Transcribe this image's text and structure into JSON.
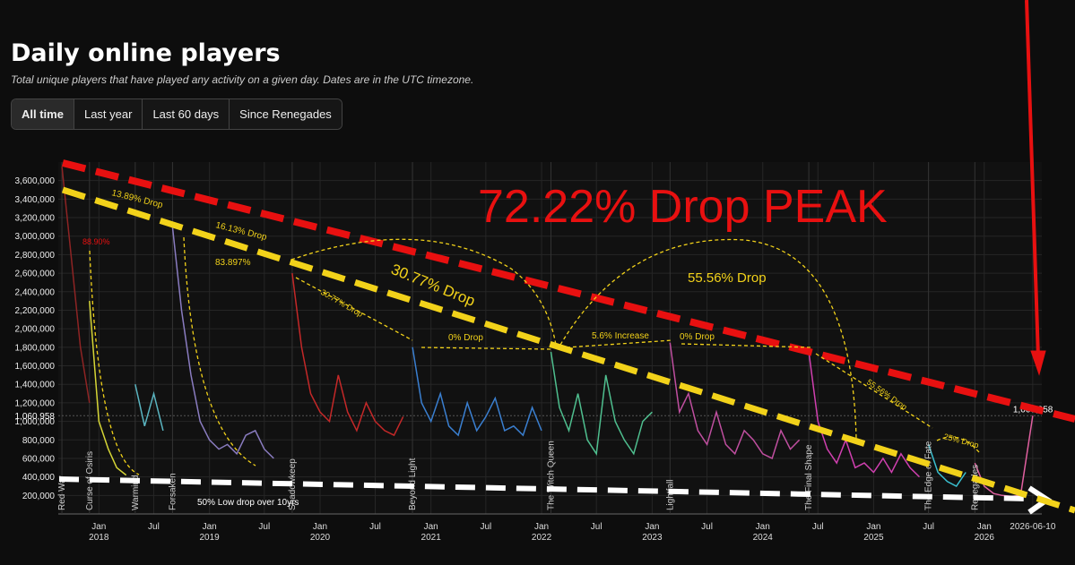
{
  "chart_data": {
    "type": "line",
    "title": "Daily online players",
    "subtitle": "Total unique players that have played any activity on a given day. Dates are in the UTC timezone.",
    "buttons": [
      "All time",
      "Last year",
      "Last 60 days",
      "Since Renegades"
    ],
    "xlim": [
      "2017-08-20",
      "2026-07-10"
    ],
    "ylim": [
      0,
      3800000
    ],
    "grid": true,
    "yticks": [
      {
        "value": 200000,
        "label": "200,000"
      },
      {
        "value": 400000,
        "label": "400,000"
      },
      {
        "value": 600000,
        "label": "600,000"
      },
      {
        "value": 800000,
        "label": "800,000"
      },
      {
        "value": 1000000,
        "label": "1,000,000"
      },
      {
        "value": 1200000,
        "label": "1,200,000"
      },
      {
        "value": 1400000,
        "label": "1,400,000"
      },
      {
        "value": 1600000,
        "label": "1,600,000"
      },
      {
        "value": 1800000,
        "label": "1,800,000"
      },
      {
        "value": 2000000,
        "label": "2,000,000"
      },
      {
        "value": 2200000,
        "label": "2,200,000"
      },
      {
        "value": 2400000,
        "label": "2,400,000"
      },
      {
        "value": 2600000,
        "label": "2,600,000"
      },
      {
        "value": 2800000,
        "label": "2,800,000"
      },
      {
        "value": 3000000,
        "label": "3,000,000"
      },
      {
        "value": 3200000,
        "label": "3,200,000"
      },
      {
        "value": 3400000,
        "label": "3,400,000"
      },
      {
        "value": 3600000,
        "label": "3,600,000"
      }
    ],
    "current_marker": {
      "value": 1060958,
      "label": "1,060,958",
      "date": "2026-06-10"
    },
    "xticks": [
      {
        "value": "2018-01",
        "label": "Jan"
      },
      {
        "value": "2018-07",
        "label": "Jul"
      },
      {
        "value": "2019-01",
        "label": "Jan"
      },
      {
        "value": "2019-07",
        "label": "Jul"
      },
      {
        "value": "2020-01",
        "label": "Jan"
      },
      {
        "value": "2020-07",
        "label": "Jul"
      },
      {
        "value": "2021-01",
        "label": "Jan"
      },
      {
        "value": "2021-07",
        "label": "Jul"
      },
      {
        "value": "2022-01",
        "label": "Jan"
      },
      {
        "value": "2022-07",
        "label": "Jul"
      },
      {
        "value": "2023-01",
        "label": "Jan"
      },
      {
        "value": "2023-07",
        "label": "Jul"
      },
      {
        "value": "2024-01",
        "label": "Jan"
      },
      {
        "value": "2024-07",
        "label": "Jul"
      },
      {
        "value": "2025-01",
        "label": "Jan"
      },
      {
        "value": "2025-07",
        "label": "Jul"
      },
      {
        "value": "2026-01",
        "label": "Jan"
      },
      {
        "value": "2026-06-10",
        "label": "2026-06-10"
      }
    ],
    "xtick_years": [
      {
        "value": "2018-01",
        "label": "2018"
      },
      {
        "value": "2019-01",
        "label": "2019"
      },
      {
        "value": "2020-01",
        "label": "2020"
      },
      {
        "value": "2021-01",
        "label": "2021"
      },
      {
        "value": "2022-01",
        "label": "2022"
      },
      {
        "value": "2023-01",
        "label": "2023"
      },
      {
        "value": "2024-01",
        "label": "2024"
      },
      {
        "value": "2025-01",
        "label": "2025"
      },
      {
        "value": "2026-01",
        "label": "2026"
      }
    ],
    "series": [
      {
        "name": "Red War",
        "color": "#8e2424",
        "x": [
          "2017-09",
          "2017-10",
          "2017-11",
          "2017-12"
        ],
        "values": [
          3750000,
          2800000,
          1800000,
          1200000
        ]
      },
      {
        "name": "Curse of Osiris",
        "color": "#d6d636",
        "x": [
          "2017-12",
          "2018-01",
          "2018-02",
          "2018-03",
          "2018-04"
        ],
        "values": [
          2300000,
          1000000,
          700000,
          500000,
          420000
        ]
      },
      {
        "name": "Warmind",
        "color": "#5ab4c0",
        "x": [
          "2018-05",
          "2018-06",
          "2018-07",
          "2018-08"
        ],
        "values": [
          1400000,
          950000,
          1300000,
          900000
        ]
      },
      {
        "name": "Forsaken",
        "color": "#8a7cc0",
        "x": [
          "2018-09",
          "2018-10",
          "2018-11",
          "2018-12",
          "2019-01",
          "2019-02",
          "2019-03",
          "2019-04",
          "2019-05",
          "2019-06",
          "2019-07",
          "2019-08"
        ],
        "values": [
          3100000,
          2200000,
          1500000,
          1000000,
          800000,
          700000,
          750000,
          650000,
          850000,
          900000,
          700000,
          600000
        ]
      },
      {
        "name": "Shadowkeep",
        "color": "#c42828",
        "x": [
          "2019-10",
          "2019-11",
          "2019-12",
          "2020-01",
          "2020-02",
          "2020-03",
          "2020-04",
          "2020-05",
          "2020-06",
          "2020-07",
          "2020-08",
          "2020-09",
          "2020-10"
        ],
        "values": [
          2600000,
          1800000,
          1300000,
          1100000,
          1000000,
          1500000,
          1100000,
          900000,
          1200000,
          1000000,
          900000,
          850000,
          1050000
        ]
      },
      {
        "name": "Beyond Light",
        "color": "#3a7fd0",
        "x": [
          "2020-11",
          "2020-12",
          "2021-01",
          "2021-02",
          "2021-03",
          "2021-04",
          "2021-05",
          "2021-06",
          "2021-07",
          "2021-08",
          "2021-09",
          "2021-10",
          "2021-11",
          "2021-12",
          "2022-01"
        ],
        "values": [
          1800000,
          1200000,
          1000000,
          1300000,
          950000,
          850000,
          1200000,
          900000,
          1050000,
          1250000,
          900000,
          950000,
          850000,
          1150000,
          900000
        ]
      },
      {
        "name": "The Witch Queen",
        "color": "#4fbf8f",
        "x": [
          "2022-02",
          "2022-03",
          "2022-04",
          "2022-05",
          "2022-06",
          "2022-07",
          "2022-08",
          "2022-09",
          "2022-10",
          "2022-11",
          "2022-12",
          "2023-01"
        ],
        "values": [
          1750000,
          1150000,
          900000,
          1300000,
          800000,
          650000,
          1500000,
          1000000,
          800000,
          650000,
          1000000,
          1100000
        ]
      },
      {
        "name": "Lightfall",
        "color": "#c04fa0",
        "x": [
          "2023-03",
          "2023-04",
          "2023-05",
          "2023-06",
          "2023-07",
          "2023-08",
          "2023-09",
          "2023-10",
          "2023-11",
          "2023-12",
          "2024-01",
          "2024-02",
          "2024-03",
          "2024-04",
          "2024-05"
        ],
        "values": [
          1850000,
          1100000,
          1300000,
          900000,
          750000,
          1100000,
          750000,
          650000,
          900000,
          800000,
          650000,
          600000,
          900000,
          700000,
          800000
        ]
      },
      {
        "name": "The Final Shape",
        "color": "#d040b0",
        "x": [
          "2024-06",
          "2024-07",
          "2024-08",
          "2024-09",
          "2024-10",
          "2024-11",
          "2024-12",
          "2025-01",
          "2025-02",
          "2025-03",
          "2025-04",
          "2025-05",
          "2025-06"
        ],
        "values": [
          1750000,
          1000000,
          700000,
          550000,
          800000,
          500000,
          550000,
          450000,
          600000,
          450000,
          650000,
          500000,
          400000
        ]
      },
      {
        "name": "The Edge of Fate",
        "color": "#3ac0d0",
        "x": [
          "2025-07",
          "2025-08",
          "2025-09",
          "2025-10",
          "2025-11"
        ],
        "values": [
          750000,
          450000,
          350000,
          300000,
          450000
        ]
      },
      {
        "name": "Renegades",
        "color": "#e060a0",
        "x": [
          "2025-12",
          "2026-01",
          "2026-02",
          "2026-03",
          "2026-04",
          "2026-05",
          "2026-06-10"
        ],
        "values": [
          550000,
          300000,
          220000,
          200000,
          190000,
          200000,
          1060958
        ]
      }
    ],
    "annotations": [
      "72.22% Drop PEAK",
      "13.89% Drop",
      "88.90%",
      "16.13% Drop",
      "83.897%",
      "30.77% Drop",
      "30.77% Drop",
      "0% Drop",
      "5.6% Increase",
      "0% Drop",
      "55.56% Drop",
      "55.56% Drop",
      "25% Drop",
      "50% Low drop over 10yrs"
    ]
  }
}
